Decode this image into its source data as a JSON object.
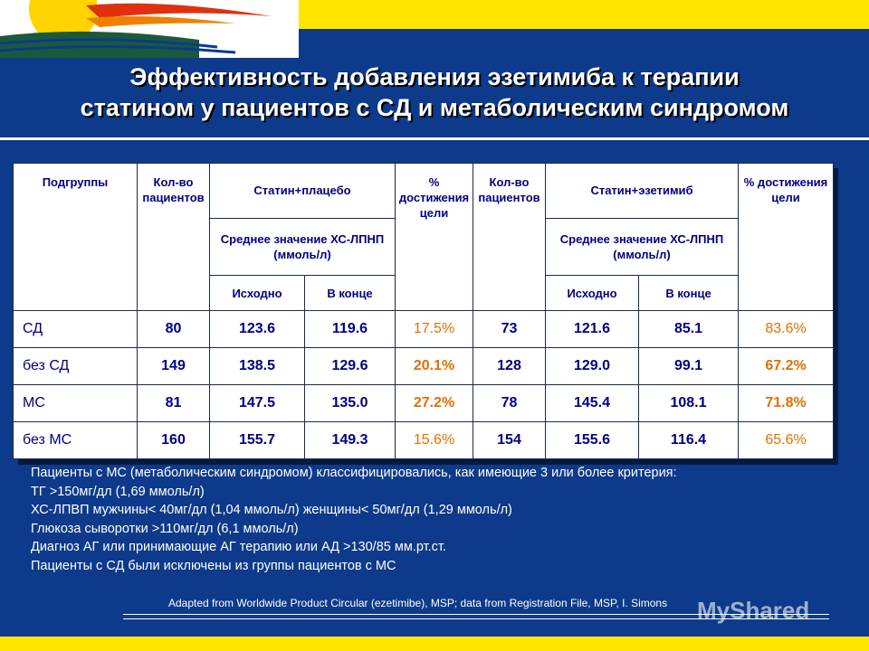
{
  "title": {
    "line1": "Эффективность добавления эзетимиба к терапии",
    "line2": "статином у пациентов с СД и метаболическим синдромом"
  },
  "table": {
    "header": {
      "subgroups": "Подгруппы",
      "n1": "Кол-во пациентов",
      "statin_placebo": "Статин+плацебо",
      "pct1": "% достижения цели",
      "n2": "Кол-во пациентов",
      "statin_ezetimibe": "Статин+эзетимиб",
      "pct2": "% достижения цели",
      "mean_ldl_1": "Среднее значение ХС-ЛПНП (ммоль/л)",
      "mean_ldl_2": "Среднее значение ХС-ЛПНП (ммоль/л)",
      "baseline_1": "Исходно",
      "end_1": "В конце",
      "baseline_2": "Исходно",
      "end_2": "В конце"
    },
    "rows": [
      {
        "group": "СД",
        "n1": "80",
        "base1": "123.6",
        "end1": "119.6",
        "pct1": "17.5%",
        "n2": "73",
        "base2": "121.6",
        "end2": "85.1",
        "pct2": "83.6%"
      },
      {
        "group": "без СД",
        "n1": "149",
        "base1": "138.5",
        "end1": "129.6",
        "pct1": "20.1%",
        "n2": "128",
        "base2": "129.0",
        "end2": "99.1",
        "pct2": "67.2%"
      },
      {
        "group": "МС",
        "n1": "81",
        "base1": "147.5",
        "end1": "135.0",
        "pct1": "27.2%",
        "n2": "78",
        "base2": "145.4",
        "end2": "108.1",
        "pct2": "71.8%"
      },
      {
        "group": "без МС",
        "n1": "160",
        "base1": "155.7",
        "end1": "149.3",
        "pct1": "15.6%",
        "n2": "154",
        "base2": "155.6",
        "end2": "116.4",
        "pct2": "65.6%"
      }
    ]
  },
  "notes": [
    "Пациенты с МС (метаболическим синдромом)  классифицировались, как имеющие 3 или более критерия:",
    "ТГ  >150мг/дл (1,69 ммоль/л)",
    "ХС-ЛПВП  мужчины< 40мг/дл (1,04 ммоль/л) женщины< 50мг/дл (1,29 ммоль/л)",
    "Глюкоза сыворотки >110мг/дл (6,1 ммоль/л)",
    "Диагноз АГ или принимающие АГ терапию или АД >130/85 мм.рт.ст.",
    "Пациенты с СД были исключены из группы пациентов с МС"
  ],
  "source": "Adapted from Worldwide Product Circular (ezetimibe), MSP; data from Registration File, MSP, I. Simons",
  "watermark": "MyShared",
  "colors": {
    "background": "#0d3a8a",
    "band": "#ffe600",
    "header_text": "#000080",
    "percent_text": "#e07000"
  }
}
